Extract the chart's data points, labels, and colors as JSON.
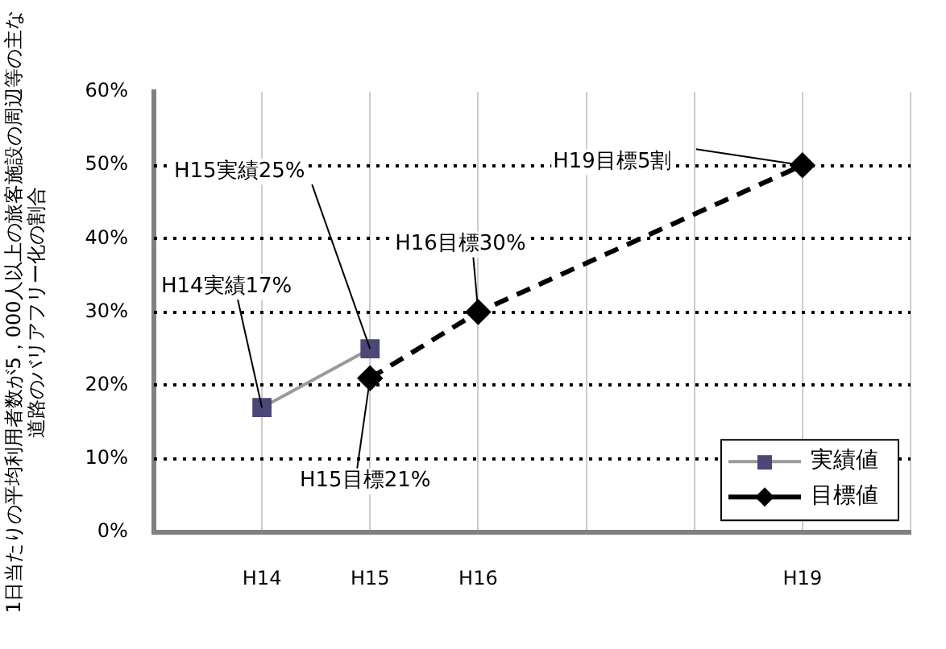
{
  "chart_data": {
    "type": "line",
    "ylabel": "1日当たりの平均利用者数が5，000人以上の旅客施設の周辺等の主な道路のバリアフリー化の割合",
    "categories": [
      null,
      "H14",
      "H15",
      "H16",
      null,
      null,
      "H19",
      null
    ],
    "ylim": [
      0,
      60
    ],
    "yticks": [
      {
        "value": 0,
        "label": "0%"
      },
      {
        "value": 10,
        "label": "10%"
      },
      {
        "value": 20,
        "label": "20%"
      },
      {
        "value": 30,
        "label": "30%"
      },
      {
        "value": 40,
        "label": "40%"
      },
      {
        "value": 50,
        "label": "50%"
      },
      {
        "value": 60,
        "label": "60%"
      }
    ],
    "series": [
      {
        "name": "実績値",
        "color": "#9a9a9a",
        "marker": "square",
        "line_style": "solid",
        "values": [
          null,
          17,
          25,
          null,
          null,
          null,
          null,
          null
        ]
      },
      {
        "name": "目標値",
        "color": "#000000",
        "marker": "diamond",
        "line_style": "dashed",
        "values": [
          null,
          null,
          21,
          30,
          null,
          null,
          50,
          null
        ]
      }
    ],
    "annotations": [
      {
        "text": "H14実績17%",
        "x": "H14",
        "y": 17
      },
      {
        "text": "H15実績25%",
        "x": "H15",
        "y": 25
      },
      {
        "text": "H16目標30%",
        "x": "H16",
        "y": 30
      },
      {
        "text": "H15目標21%",
        "x": "H15",
        "y": 21
      },
      {
        "text": "H19目標5割",
        "x": "H19",
        "y": 50
      }
    ],
    "grid": true,
    "legend": "bottom right"
  }
}
